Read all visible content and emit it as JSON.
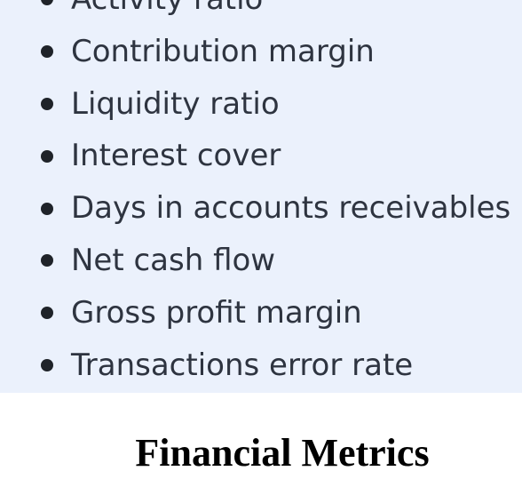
{
  "list": {
    "items": [
      {
        "label": "Activity ratio"
      },
      {
        "label": "Contribution margin"
      },
      {
        "label": "Liquidity ratio"
      },
      {
        "label": "Interest cover"
      },
      {
        "label": "Days in accounts receivables"
      },
      {
        "label": "Net cash flow"
      },
      {
        "label": "Gross profit margin"
      },
      {
        "label": "Transactions error rate"
      }
    ]
  },
  "caption": "Financial Metrics"
}
